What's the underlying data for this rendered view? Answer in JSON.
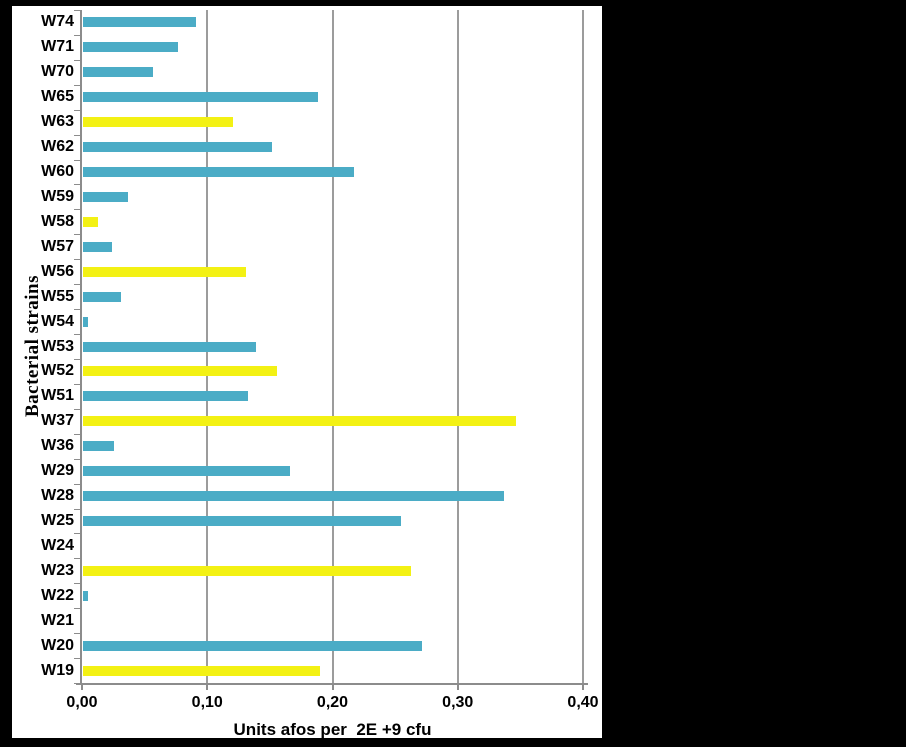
{
  "frame": {
    "canvas_background": "#000000",
    "plot_background": "#FFFFFF",
    "grid_color": "#9C9C9C",
    "axis_color": "#8C8C8C",
    "text_color": "#000000"
  },
  "chart_data": {
    "type": "bar",
    "orientation": "horizontal",
    "title": "",
    "xlabel": "Units afos per  2E +9 cfu",
    "ylabel": "Bacterial strains",
    "xlim": [
      0,
      0.4
    ],
    "grid": true,
    "legend": "none",
    "x_ticks": [
      {
        "v": 0.0,
        "label": "0,00"
      },
      {
        "v": 0.1,
        "label": "0,10"
      },
      {
        "v": 0.2,
        "label": "0,20"
      },
      {
        "v": 0.3,
        "label": "0,30"
      },
      {
        "v": 0.4,
        "label": "0,40"
      }
    ],
    "palette": {
      "teal": "#4BACC6",
      "yellow": "#F3F114"
    },
    "bars": [
      {
        "category": "W74",
        "value": 0.09,
        "color": "teal"
      },
      {
        "category": "W71",
        "value": 0.076,
        "color": "teal"
      },
      {
        "category": "W70",
        "value": 0.056,
        "color": "teal"
      },
      {
        "category": "W65",
        "value": 0.188,
        "color": "teal"
      },
      {
        "category": "W63",
        "value": 0.12,
        "color": "yellow"
      },
      {
        "category": "W62",
        "value": 0.151,
        "color": "teal"
      },
      {
        "category": "W60",
        "value": 0.216,
        "color": "teal"
      },
      {
        "category": "W59",
        "value": 0.036,
        "color": "teal"
      },
      {
        "category": "W58",
        "value": 0.012,
        "color": "yellow"
      },
      {
        "category": "W57",
        "value": 0.023,
        "color": "teal"
      },
      {
        "category": "W56",
        "value": 0.13,
        "color": "yellow"
      },
      {
        "category": "W55",
        "value": 0.03,
        "color": "teal"
      },
      {
        "category": "W54",
        "value": 0.004,
        "color": "teal"
      },
      {
        "category": "W53",
        "value": 0.138,
        "color": "teal"
      },
      {
        "category": "W52",
        "value": 0.155,
        "color": "yellow"
      },
      {
        "category": "W51",
        "value": 0.132,
        "color": "teal"
      },
      {
        "category": "W37",
        "value": 0.346,
        "color": "yellow"
      },
      {
        "category": "W36",
        "value": 0.025,
        "color": "teal"
      },
      {
        "category": "W29",
        "value": 0.165,
        "color": "teal"
      },
      {
        "category": "W28",
        "value": 0.336,
        "color": "teal"
      },
      {
        "category": "W25",
        "value": 0.254,
        "color": "teal"
      },
      {
        "category": "W24",
        "value": 0.0,
        "color": "teal"
      },
      {
        "category": "W23",
        "value": 0.262,
        "color": "yellow"
      },
      {
        "category": "W22",
        "value": 0.004,
        "color": "teal"
      },
      {
        "category": "W21",
        "value": 0.0,
        "color": "teal"
      },
      {
        "category": "W20",
        "value": 0.271,
        "color": "teal"
      },
      {
        "category": "W19",
        "value": 0.189,
        "color": "yellow"
      }
    ]
  }
}
